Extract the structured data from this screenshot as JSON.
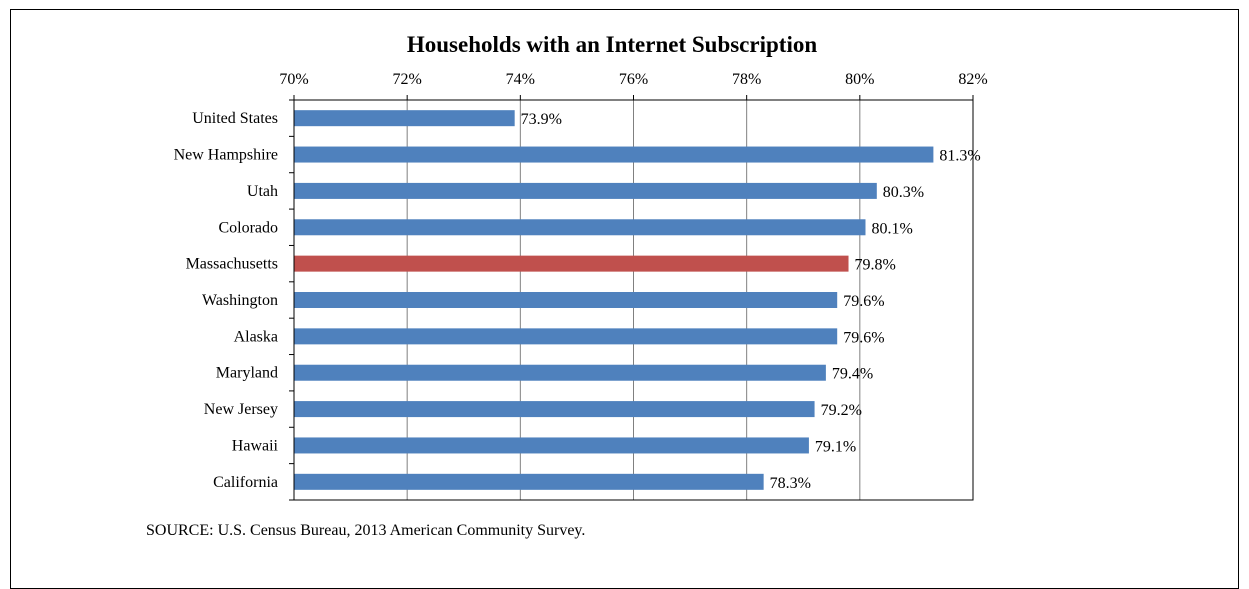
{
  "chart_data": {
    "type": "bar",
    "orientation": "horizontal",
    "title": "Households with an Internet Subscription",
    "categories": [
      "United States",
      "New Hampshire",
      "Utah",
      "Colorado",
      "Massachusetts",
      "Washington",
      "Alaska",
      "Maryland",
      "New Jersey",
      "Hawaii",
      "California"
    ],
    "values": [
      73.9,
      81.3,
      80.3,
      80.1,
      79.8,
      79.6,
      79.6,
      79.4,
      79.2,
      79.1,
      78.3
    ],
    "value_labels": [
      "73.9%",
      "81.3%",
      "80.3%",
      "80.1%",
      "79.8%",
      "79.6%",
      "79.6%",
      "79.4%",
      "79.2%",
      "79.1%",
      "78.3%"
    ],
    "xlim": [
      70,
      82
    ],
    "x_ticks": [
      70,
      72,
      74,
      76,
      78,
      80,
      82
    ],
    "x_tick_labels": [
      "70%",
      "72%",
      "74%",
      "76%",
      "78%",
      "80%",
      "82%"
    ],
    "x_axis_position": "top",
    "grid": true,
    "colors": {
      "default": "#4f81bd",
      "highlight": "#c0504d"
    },
    "highlight_category": "Massachusetts"
  },
  "source_note": "SOURCE: U.S. Census Bureau, 2013 American Community Survey."
}
